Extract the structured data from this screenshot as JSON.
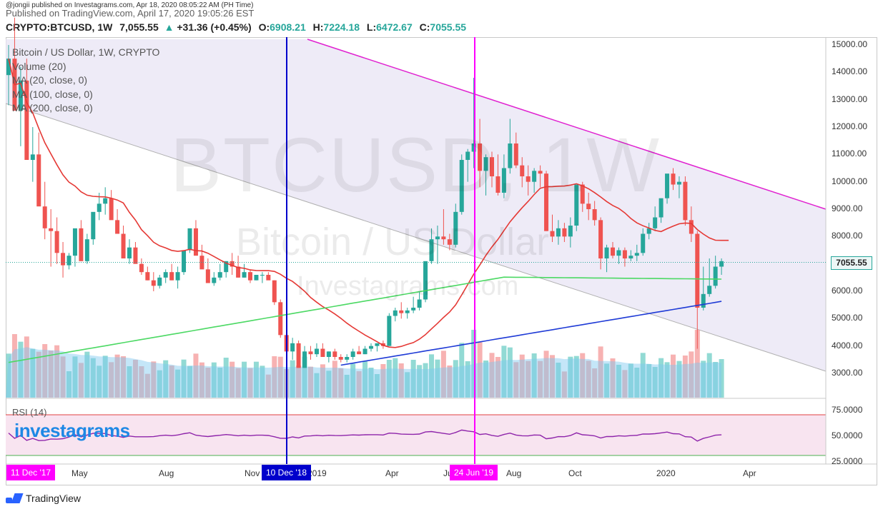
{
  "publisher": {
    "line1": "@jongii published on Investagrams.com, Apr 18, 2020 08:05:22 AM (PH Time)",
    "line2": "Published on TradingView.com, April 17, 2020 19:05:26 EST"
  },
  "header": {
    "symbol": "CRYPTO:BTCUSD, 1W",
    "last": "7,055.55",
    "arrow": "▲",
    "change": "+31.36 (+0.45%)",
    "o_label": "O:",
    "o": "6908.21",
    "h_label": "H:",
    "h": "7224.18",
    "l_label": "L:",
    "l": "6472.67",
    "c_label": "C:",
    "c": "7055.55"
  },
  "legend": [
    "Bitcoin / US Dollar, 1W, CRYPTO",
    "Volume (20)",
    "MA (20, close, 0)",
    "MA (100, close, 0)",
    "MA (200, close, 0)"
  ],
  "watermarks": {
    "big": "BTCUSD, 1W",
    "name": "Bitcoin / US Dollar",
    "site": "Investagrams.com",
    "logo": "investagrams"
  },
  "rsi_legend": "RSI (14)",
  "last_price_label": "7055.55",
  "footer": "TradingView",
  "time_labels": [
    {
      "text": "May",
      "x": 110
    },
    {
      "text": "Aug",
      "x": 232
    },
    {
      "text": "Nov",
      "x": 352
    },
    {
      "text": "2019",
      "x": 440
    },
    {
      "text": "Apr",
      "x": 549
    },
    {
      "text": "Jul",
      "x": 630
    },
    {
      "text": "Aug",
      "x": 718
    },
    {
      "text": "Oct",
      "x": 805
    },
    {
      "text": "2020",
      "x": 928
    },
    {
      "text": "Apr",
      "x": 1049
    }
  ],
  "date_tags": [
    {
      "text": "11 Dec '17",
      "color": "#ff00ff"
    },
    {
      "text": "10 Dec '18",
      "color": "#0000cc"
    },
    {
      "text": "24 Jun '19",
      "color": "#ff00ff"
    }
  ],
  "colors": {
    "up": "#26a69a",
    "down": "#ef5350",
    "ma20": "#e53935",
    "ma100": "#4cd964",
    "ma200": "#1f3bd6",
    "trend_top": "#e020d0",
    "channel_fill": "#e8e4f4",
    "rsi_line": "#8e24aa",
    "rsi_band": "#f8e4f0",
    "volume_up": "#7fd3cc",
    "volume_down": "#f6a5a4",
    "volume_ma": "#7cc8f0"
  },
  "chart_data": [
    {
      "type": "candlestick",
      "title": "Bitcoin / US Dollar, 1W, CRYPTO",
      "ylim": [
        2000,
        15500
      ],
      "price_ticks": [
        "15000.00",
        "14000.00",
        "13000.00",
        "12000.00",
        "11000.00",
        "10000.00",
        "9000.00",
        "8000.00",
        "7055.55",
        "6000.00",
        "5000.00",
        "4000.00",
        "3000.00"
      ],
      "candles_ohlc": [
        [
          13900,
          15000,
          12800,
          14500
        ],
        [
          14500,
          16000,
          13000,
          12600
        ],
        [
          12600,
          14200,
          11300,
          13700
        ],
        [
          13700,
          14500,
          12000,
          10800
        ],
        [
          10800,
          12000,
          10000,
          11000
        ],
        [
          11000,
          11800,
          9500,
          9100
        ],
        [
          9100,
          10000,
          7900,
          8300
        ],
        [
          8300,
          9000,
          6900,
          8200
        ],
        [
          8200,
          8700,
          7000,
          7400
        ],
        [
          7400,
          7800,
          6500,
          6950
        ],
        [
          6950,
          7400,
          6800,
          7300
        ],
        [
          7300,
          7900,
          6900,
          8300
        ],
        [
          8300,
          8600,
          7600,
          7100
        ],
        [
          7100,
          8100,
          7000,
          7900
        ],
        [
          7900,
          8800,
          7700,
          8900
        ],
        [
          8900,
          9600,
          8600,
          9200
        ],
        [
          9200,
          9800,
          8800,
          9400
        ],
        [
          9400,
          9700,
          8700,
          8600
        ],
        [
          8600,
          9000,
          8200,
          8100
        ],
        [
          8100,
          8400,
          7200,
          7200
        ],
        [
          7200,
          7900,
          7000,
          7600
        ],
        [
          7600,
          7800,
          7200,
          7000
        ],
        [
          7000,
          7200,
          6600,
          6700
        ],
        [
          6700,
          6900,
          6400,
          6400
        ],
        [
          6400,
          6700,
          6000,
          6200
        ],
        [
          6200,
          6600,
          6100,
          6500
        ],
        [
          6500,
          6800,
          6300,
          6700
        ],
        [
          6700,
          7000,
          6400,
          6400
        ],
        [
          6400,
          6900,
          6100,
          6700
        ],
        [
          6700,
          7400,
          6600,
          7500
        ],
        [
          7500,
          8200,
          7400,
          8300
        ],
        [
          8300,
          8600,
          7600,
          7300
        ],
        [
          7300,
          7700,
          6900,
          6800
        ],
        [
          6800,
          7200,
          6300,
          6300
        ],
        [
          6300,
          6700,
          6200,
          6500
        ],
        [
          6500,
          7000,
          6400,
          6700
        ],
        [
          6700,
          7100,
          6500,
          7100
        ],
        [
          7100,
          7400,
          6600,
          6900
        ],
        [
          6900,
          7300,
          6500,
          6500
        ],
        [
          6500,
          7000,
          6500,
          6700
        ],
        [
          6700,
          6800,
          6300,
          6400
        ],
        [
          6400,
          6600,
          6400,
          6600
        ],
        [
          6600,
          6700,
          6300,
          6600
        ],
        [
          6600,
          6700,
          6500,
          6400
        ],
        [
          6400,
          6400,
          5500,
          5600
        ],
        [
          5600,
          5700,
          4300,
          4400
        ],
        [
          4400,
          4500,
          3600,
          3800
        ],
        [
          3800,
          4300,
          3500,
          4100
        ],
        [
          4100,
          4200,
          3300,
          3200
        ],
        [
          3200,
          4000,
          3200,
          3800
        ],
        [
          3800,
          4000,
          3500,
          3700
        ],
        [
          3700,
          4100,
          3600,
          3900
        ],
        [
          3900,
          4100,
          3700,
          3600
        ],
        [
          3600,
          3800,
          3400,
          3800
        ],
        [
          3800,
          3900,
          3500,
          3600
        ],
        [
          3600,
          3700,
          3400,
          3500
        ],
        [
          3500,
          3700,
          3400,
          3600
        ],
        [
          3600,
          3900,
          3500,
          3800
        ],
        [
          3800,
          4000,
          3700,
          3700
        ],
        [
          3700,
          4000,
          3700,
          3900
        ],
        [
          3900,
          4100,
          3800,
          4000
        ],
        [
          4000,
          4100,
          3800,
          4100
        ],
        [
          4100,
          4200,
          3900,
          4000
        ],
        [
          4000,
          5200,
          4000,
          5100
        ],
        [
          5100,
          5400,
          4900,
          5300
        ],
        [
          5300,
          5600,
          5000,
          5200
        ],
        [
          5200,
          5400,
          5000,
          5300
        ],
        [
          5300,
          5800,
          5200,
          5400
        ],
        [
          5400,
          6000,
          5300,
          5700
        ],
        [
          5700,
          7000,
          5600,
          7100
        ],
        [
          7100,
          8300,
          7000,
          7900
        ],
        [
          7900,
          8400,
          7000,
          8000
        ],
        [
          8000,
          9000,
          7700,
          7900
        ],
        [
          7900,
          8100,
          7500,
          7700
        ],
        [
          7700,
          9200,
          7600,
          8900
        ],
        [
          8900,
          11000,
          8800,
          10800
        ],
        [
          10800,
          11200,
          10000,
          11100
        ],
        [
          11100,
          13800,
          10500,
          11400
        ],
        [
          11400,
          12300,
          9800,
          10400
        ],
        [
          10400,
          11000,
          9500,
          10900
        ],
        [
          10900,
          11100,
          9800,
          10200
        ],
        [
          10200,
          11000,
          9500,
          9600
        ],
        [
          9600,
          11000,
          9400,
          10500
        ],
        [
          10500,
          12300,
          10300,
          11400
        ],
        [
          11400,
          11800,
          10500,
          10600
        ],
        [
          10600,
          10900,
          9800,
          10200
        ],
        [
          10200,
          10600,
          9500,
          10000
        ],
        [
          10000,
          10500,
          9600,
          10400
        ],
        [
          10400,
          10600,
          9800,
          10300
        ],
        [
          10300,
          10400,
          8200,
          8200
        ],
        [
          8200,
          8800,
          7800,
          8000
        ],
        [
          8000,
          8600,
          7700,
          8300
        ],
        [
          8300,
          8500,
          7800,
          8000
        ],
        [
          8000,
          8700,
          7600,
          8400
        ],
        [
          8400,
          9900,
          8200,
          9900
        ],
        [
          9900,
          10000,
          8900,
          9200
        ],
        [
          9200,
          9600,
          8600,
          9000
        ],
        [
          9000,
          9300,
          8400,
          8600
        ],
        [
          8600,
          8700,
          6800,
          7200
        ],
        [
          7200,
          7700,
          6700,
          7600
        ],
        [
          7600,
          7800,
          7200,
          7300
        ],
        [
          7300,
          7600,
          7000,
          7500
        ],
        [
          7500,
          7600,
          6900,
          7200
        ],
        [
          7200,
          7500,
          7100,
          7300
        ],
        [
          7300,
          7700,
          7100,
          7400
        ],
        [
          7400,
          8300,
          7300,
          8100
        ],
        [
          8100,
          8500,
          7900,
          8300
        ],
        [
          8300,
          9100,
          8200,
          8700
        ],
        [
          8700,
          9300,
          8500,
          9400
        ],
        [
          9400,
          10200,
          9200,
          10300
        ],
        [
          10300,
          10500,
          9700,
          9900
        ],
        [
          9900,
          10200,
          9400,
          10000
        ],
        [
          10000,
          10200,
          8400,
          8600
        ],
        [
          8600,
          9100,
          7800,
          8100
        ],
        [
          8100,
          8200,
          3900,
          5400
        ],
        [
          5400,
          6900,
          5300,
          5900
        ],
        [
          5900,
          7200,
          5800,
          6200
        ],
        [
          6200,
          7300,
          6100,
          6900
        ],
        [
          6900,
          7200,
          6600,
          7100
        ]
      ]
    },
    {
      "type": "line",
      "series": [
        {
          "name": "MA (20, close, 0)"
        },
        {
          "name": "MA (100, close, 0)"
        },
        {
          "name": "MA (200, close, 0)"
        }
      ]
    },
    {
      "type": "line",
      "title": "RSI (14)",
      "ylim": [
        20,
        85
      ],
      "rsi_ticks": [
        "75.0000",
        "50.0000",
        "25.0000"
      ],
      "overbought": 70,
      "oversold": 30
    }
  ]
}
